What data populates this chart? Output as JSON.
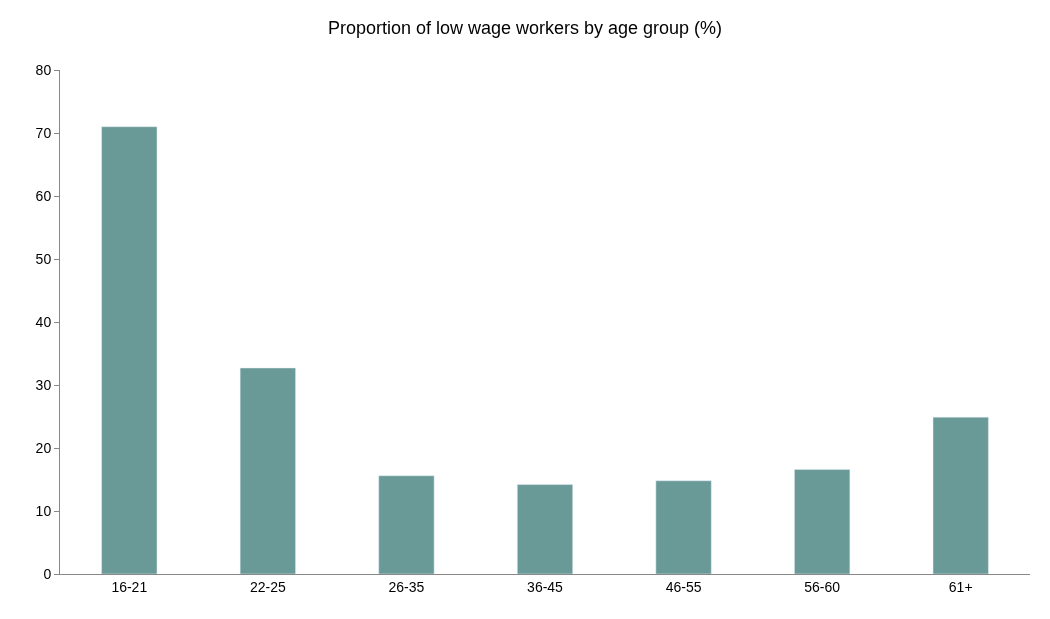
{
  "chart_data": {
    "type": "bar",
    "title": "Proportion of low wage workers by age group (%)",
    "categories": [
      "16-21",
      "22-25",
      "26-35",
      "36-45",
      "46-55",
      "56-60",
      "61+"
    ],
    "values": [
      71,
      32.7,
      15.6,
      14.2,
      14.8,
      16.6,
      24.9
    ],
    "color": "#6a9a98",
    "ylim": [
      0,
      80
    ],
    "yticks": [
      0,
      10,
      20,
      30,
      40,
      50,
      60,
      70,
      80
    ],
    "grid": false
  }
}
